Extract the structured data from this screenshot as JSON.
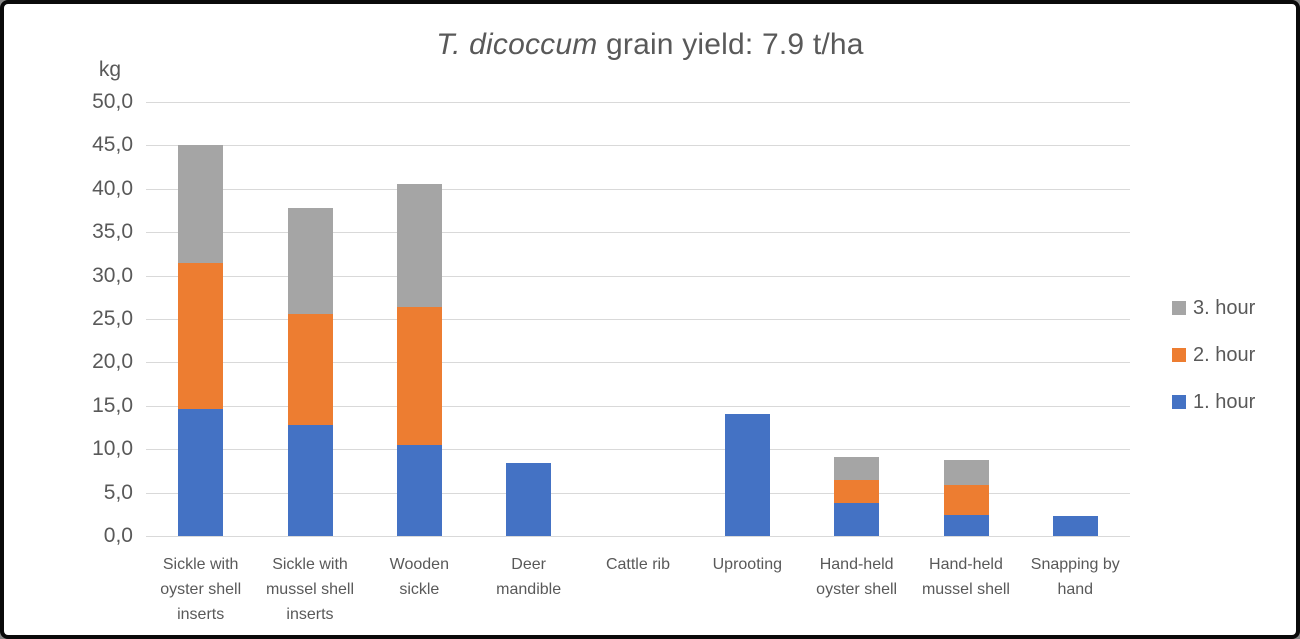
{
  "frame": {
    "background": "#ffffff",
    "border_color": "#0a0a0a",
    "text_color": "#595959",
    "gridline_color": "#d9d9d9"
  },
  "chart_data": {
    "type": "bar",
    "stacked": true,
    "title_italic": "T. dicoccum",
    "title_rest": " grain yield: 7.9 t/ha",
    "y_axis_unit": "kg",
    "categories": [
      "Sickle with oyster shell inserts",
      "Sickle with mussel shell inserts",
      "Wooden sickle",
      "Deer mandible",
      "Cattle rib",
      "Uprooting",
      "Hand-held oyster shell",
      "Hand-held mussel shell",
      "Snapping by hand"
    ],
    "series": [
      {
        "name": "1. hour",
        "color": "#4472c4",
        "values": [
          14.6,
          12.8,
          10.5,
          8.4,
          0,
          14.0,
          3.8,
          2.4,
          2.3
        ]
      },
      {
        "name": "2. hour",
        "color": "#ed7d31",
        "values": [
          16.8,
          12.8,
          15.9,
          0,
          0,
          0,
          2.7,
          3.5,
          0
        ]
      },
      {
        "name": "3. hour",
        "color": "#a5a5a5",
        "values": [
          13.6,
          12.2,
          14.1,
          0,
          0,
          0,
          2.6,
          2.9,
          0
        ]
      }
    ],
    "totals": [
      45.0,
      37.8,
      40.5,
      8.4,
      0,
      14.0,
      9.1,
      8.8,
      2.3
    ],
    "legend_order": [
      "3. hour",
      "2. hour",
      "1. hour"
    ],
    "legend_position": "right",
    "ylim": [
      0,
      50
    ],
    "ytick_step": 5,
    "y_ticks": [
      "0,0",
      "5,0",
      "10,0",
      "15,0",
      "20,0",
      "25,0",
      "30,0",
      "35,0",
      "40,0",
      "45,0",
      "50,0"
    ],
    "grid": true
  }
}
